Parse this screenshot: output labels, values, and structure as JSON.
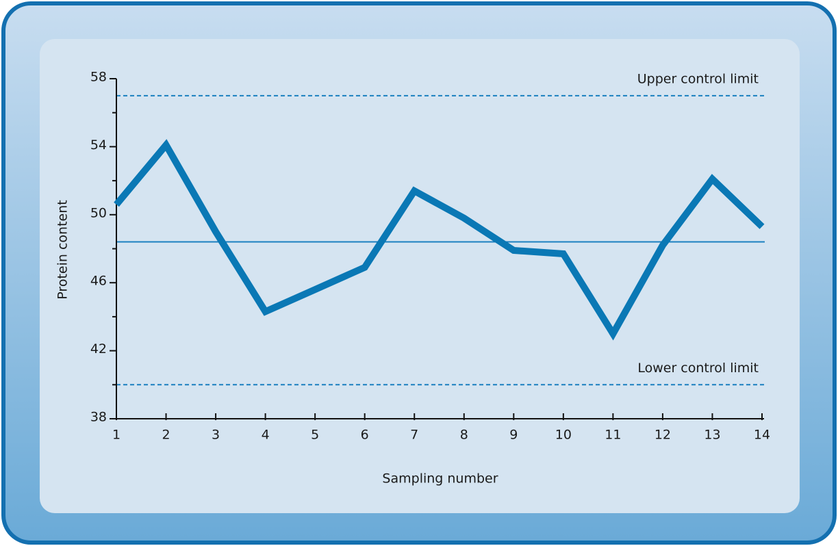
{
  "chart_data": {
    "type": "line",
    "x_label": "Sampling number",
    "y_label": "Protein content",
    "x": [
      1,
      2,
      3,
      4,
      5,
      6,
      7,
      8,
      9,
      10,
      11,
      12,
      13,
      14
    ],
    "series": [
      {
        "color": "#0a78b5",
        "values": [
          50.6,
          54.1,
          49.0,
          44.3,
          45.6,
          46.9,
          51.4,
          49.8,
          47.9,
          47.7,
          43.0,
          48.2,
          52.1,
          49.3
        ]
      }
    ],
    "xlim": [
      1,
      14
    ],
    "xticks": [
      1,
      2,
      3,
      4,
      5,
      6,
      7,
      8,
      9,
      10,
      11,
      12,
      13,
      14
    ],
    "ylim": [
      38,
      58
    ],
    "yticks": [
      38,
      42,
      46,
      50,
      54,
      58
    ],
    "yminor_ticks": [
      40,
      44,
      48,
      52,
      56
    ],
    "reference_lines": [
      {
        "label": "Upper control limit",
        "value": 57,
        "style": "dashed",
        "color": "#1a7fc0"
      },
      {
        "value": 48.4,
        "style": "solid",
        "color": "#1a7fc0"
      },
      {
        "label": "Lower control limit",
        "value": 40,
        "style": "dashed",
        "color": "#1a7fc0"
      }
    ]
  }
}
